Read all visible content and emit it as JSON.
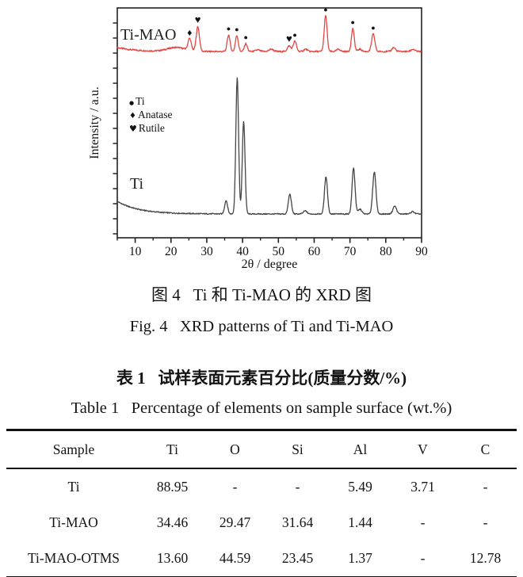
{
  "figure": {
    "caption_zh": "图 4   Ti 和 Ti-MAO 的 XRD 图",
    "caption_en": "Fig. 4   XRD patterns of Ti and Ti-MAO"
  },
  "table": {
    "caption_zh": "表 1   试样表面元素百分比(质量分数/%)",
    "caption_en": "Table 1   Percentage of elements on sample surface (wt.%)",
    "headers": [
      "Sample",
      "Ti",
      "O",
      "Si",
      "Al",
      "V",
      "C"
    ],
    "rows": [
      [
        "Ti",
        "88.95",
        "-",
        "-",
        "5.49",
        "3.71",
        "-"
      ],
      [
        "Ti-MAO",
        "34.46",
        "29.47",
        "31.64",
        "1.44",
        "-",
        "-"
      ],
      [
        "Ti-MAO-OTMS",
        "13.60",
        "44.59",
        "23.45",
        "1.37",
        "-",
        "12.78"
      ]
    ]
  },
  "chart_data": {
    "type": "line",
    "title": "",
    "xlabel": "2θ / degree",
    "ylabel": "Intensity / a.u.",
    "xlim": [
      5,
      90
    ],
    "xticks": [
      10,
      20,
      30,
      40,
      50,
      60,
      70,
      80,
      90
    ],
    "minor_tick_step": 5,
    "grid": false,
    "legend_position": "middle-left",
    "legend": [
      {
        "glyph": "●",
        "label": "Ti"
      },
      {
        "glyph": "♦",
        "label": "Anatase"
      },
      {
        "glyph": "♥",
        "label": "Rutile"
      }
    ],
    "series": [
      {
        "name": "Ti-MAO",
        "color": "#e24743",
        "peaks": [
          {
            "two_theta": 21.5,
            "height": 5,
            "width": 2.5
          },
          {
            "two_theta": 25.2,
            "height": 15,
            "width": 0.45,
            "marker": "♦"
          },
          {
            "two_theta": 27.5,
            "height": 31,
            "width": 0.45,
            "marker": "♥"
          },
          {
            "two_theta": 36.1,
            "height": 21,
            "width": 0.4,
            "marker": "●"
          },
          {
            "two_theta": 38.4,
            "height": 20,
            "width": 0.4,
            "marker": "●"
          },
          {
            "two_theta": 40.9,
            "height": 10,
            "width": 0.4,
            "marker": "●"
          },
          {
            "two_theta": 44.2,
            "height": 2,
            "width": 0.6
          },
          {
            "two_theta": 48.0,
            "height": 3,
            "width": 0.6
          },
          {
            "two_theta": 53.0,
            "height": 7,
            "width": 0.5,
            "marker": "♥"
          },
          {
            "two_theta": 54.6,
            "height": 13,
            "width": 0.45,
            "marker": "●"
          },
          {
            "two_theta": 57.6,
            "height": 3,
            "width": 0.5
          },
          {
            "two_theta": 63.2,
            "height": 45,
            "width": 0.4,
            "marker": "●"
          },
          {
            "two_theta": 66.8,
            "height": 3,
            "width": 0.5
          },
          {
            "two_theta": 70.8,
            "height": 29,
            "width": 0.4,
            "marker": "●"
          },
          {
            "two_theta": 72.8,
            "height": 3,
            "width": 0.5
          },
          {
            "two_theta": 76.5,
            "height": 22,
            "width": 0.45,
            "marker": "●"
          },
          {
            "two_theta": 82.2,
            "height": 5,
            "width": 0.5
          },
          {
            "two_theta": 87.6,
            "height": 3,
            "width": 0.5
          }
        ]
      },
      {
        "name": "Ti",
        "color": "#454545",
        "peaks": [
          {
            "two_theta": 35.4,
            "height": 17,
            "width": 0.4
          },
          {
            "two_theta": 38.5,
            "height": 172,
            "width": 0.38
          },
          {
            "two_theta": 40.3,
            "height": 117,
            "width": 0.38
          },
          {
            "two_theta": 53.2,
            "height": 25,
            "width": 0.42
          },
          {
            "two_theta": 57.5,
            "height": 4,
            "width": 0.5
          },
          {
            "two_theta": 63.3,
            "height": 47,
            "width": 0.42
          },
          {
            "two_theta": 71.0,
            "height": 58,
            "width": 0.42
          },
          {
            "two_theta": 72.8,
            "height": 6,
            "width": 0.5
          },
          {
            "two_theta": 76.8,
            "height": 53,
            "width": 0.45
          },
          {
            "two_theta": 82.5,
            "height": 10,
            "width": 0.5
          },
          {
            "two_theta": 87.5,
            "height": 3,
            "width": 0.5
          }
        ]
      }
    ]
  }
}
